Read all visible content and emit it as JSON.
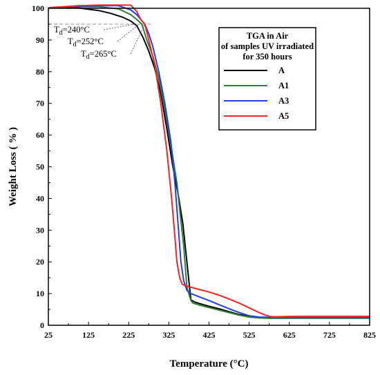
{
  "chart_data": {
    "type": "line",
    "xlabel": "Temperature   (°C)",
    "ylabel": "Weight Loss  ( % )",
    "xlim": [
      25,
      825
    ],
    "ylim": [
      0,
      100
    ],
    "xticks": [
      25,
      125,
      225,
      325,
      425,
      525,
      625,
      725,
      825
    ],
    "yticks": [
      0,
      10,
      20,
      30,
      40,
      50,
      60,
      70,
      80,
      90,
      100
    ],
    "legend": {
      "title_lines": [
        "TGA in Air",
        "of samples UV irradiated",
        "for 350 hours"
      ],
      "placement": "top-right"
    },
    "annotations": [
      {
        "prefix": "T",
        "sub": "d",
        "value": "=240°C",
        "x": 240,
        "y": 95
      },
      {
        "prefix": "T",
        "sub": "d",
        "value": "=252°C",
        "x": 252,
        "y": 95
      },
      {
        "prefix": "T",
        "sub": "d",
        "value": "=265°C",
        "x": 265,
        "y": 95
      }
    ],
    "reference_line": {
      "y": 95,
      "x_range": [
        25,
        285
      ],
      "style": "dashed"
    },
    "series": [
      {
        "name": "A",
        "color": "#000000",
        "x": [
          25,
          60,
          100,
          150,
          180,
          210,
          230,
          245,
          260,
          275,
          290,
          305,
          320,
          335,
          350,
          360,
          370,
          380,
          390,
          400,
          425,
          450,
          475,
          500,
          525,
          550,
          575,
          625,
          725,
          825
        ],
        "y": [
          100.2,
          100.3,
          100.1,
          99.3,
          98.4,
          97.2,
          96.0,
          94.5,
          91.0,
          86.5,
          81.0,
          73.0,
          62.0,
          50.0,
          40.0,
          32.0,
          20.0,
          8.0,
          7.3,
          6.9,
          6.0,
          5.2,
          4.3,
          3.4,
          2.8,
          2.4,
          2.3,
          2.3,
          2.3,
          2.3
        ]
      },
      {
        "name": "A1",
        "color": "#2e7d32",
        "x": [
          25,
          60,
          100,
          150,
          200,
          230,
          245,
          258,
          270,
          285,
          300,
          315,
          330,
          345,
          355,
          362,
          370,
          380,
          385,
          400,
          425,
          450,
          475,
          500,
          525,
          550,
          575,
          625,
          725,
          825
        ],
        "y": [
          100.2,
          100.4,
          100.5,
          100.5,
          99.8,
          98.0,
          96.5,
          95.0,
          90.0,
          85.0,
          78.0,
          68.0,
          57.0,
          45.0,
          33.0,
          25.0,
          12.0,
          7.8,
          7.0,
          6.4,
          5.6,
          4.8,
          4.0,
          3.2,
          2.6,
          2.3,
          2.2,
          2.2,
          2.2,
          2.2
        ]
      },
      {
        "name": "A3",
        "color": "#1f3ff5",
        "x": [
          25,
          60,
          100,
          150,
          200,
          230,
          245,
          255,
          265,
          275,
          285,
          300,
          315,
          330,
          340,
          348,
          355,
          362,
          370,
          380,
          400,
          425,
          450,
          475,
          500,
          525,
          550,
          575,
          625,
          725,
          825
        ],
        "y": [
          100.2,
          100.4,
          100.6,
          100.8,
          100.8,
          99.5,
          98.0,
          96.5,
          95.0,
          92.0,
          88.0,
          80.0,
          70.0,
          58.0,
          45.0,
          32.0,
          20.0,
          14.0,
          11.0,
          10.0,
          9.0,
          7.8,
          6.5,
          5.2,
          4.0,
          3.0,
          2.6,
          2.5,
          2.5,
          2.5,
          2.5
        ]
      },
      {
        "name": "A5",
        "color": "#ff2020",
        "x": [
          25,
          60,
          100,
          150,
          200,
          230,
          245,
          255,
          265,
          275,
          290,
          305,
          320,
          332,
          340,
          345,
          352,
          358,
          365,
          380,
          400,
          425,
          450,
          475,
          500,
          525,
          550,
          565,
          580,
          600,
          625,
          725,
          825
        ],
        "y": [
          100.2,
          100.5,
          100.8,
          101.0,
          101.0,
          101.0,
          99.0,
          96.5,
          95.0,
          90.0,
          82.0,
          70.0,
          55.0,
          40.0,
          28.0,
          20.0,
          15.0,
          13.0,
          12.5,
          12.0,
          11.3,
          10.5,
          9.5,
          8.3,
          7.0,
          5.5,
          4.0,
          3.2,
          2.7,
          2.7,
          2.8,
          2.8,
          2.8
        ]
      }
    ]
  }
}
